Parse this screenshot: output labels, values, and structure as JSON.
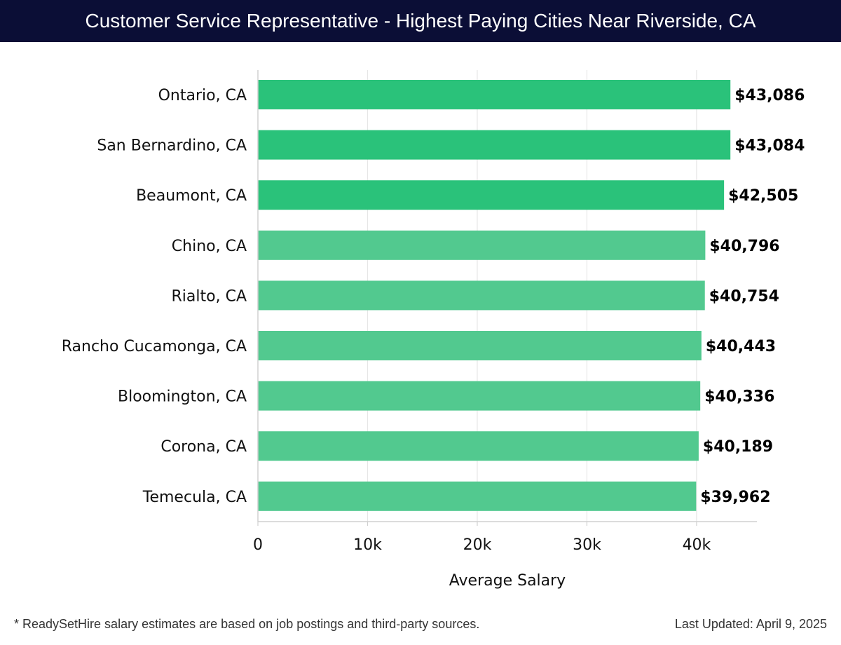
{
  "header": {
    "title": "Customer Service Representative - Highest Paying Cities Near Riverside, CA"
  },
  "chart_data": {
    "type": "bar",
    "orientation": "horizontal",
    "title": "Customer Service Representative - Highest Paying Cities Near Riverside, CA",
    "xlabel": "Average Salary",
    "ylabel": "",
    "xlim": [
      0,
      45500
    ],
    "xticks": [
      0,
      10000,
      20000,
      30000,
      40000
    ],
    "xtick_labels": [
      "0",
      "10k",
      "20k",
      "30k",
      "40k"
    ],
    "grid": true,
    "categories": [
      "Ontario, CA",
      "San Bernardino, CA",
      "Beaumont, CA",
      "Chino, CA",
      "Rialto, CA",
      "Rancho Cucamonga, CA",
      "Bloomington, CA",
      "Corona, CA",
      "Temecula, CA"
    ],
    "values": [
      43086,
      43084,
      42505,
      40796,
      40754,
      40443,
      40336,
      40189,
      39962
    ],
    "value_labels": [
      "$43,086",
      "$43,084",
      "$42,505",
      "$40,796",
      "$40,754",
      "$40,443",
      "$40,336",
      "$40,189",
      "$39,962"
    ],
    "colors": [
      "#2ac27a",
      "#2ac27a",
      "#2ac27a",
      "#52c98f",
      "#52c98f",
      "#52c98f",
      "#52c98f",
      "#52c98f",
      "#52c98f"
    ],
    "grid_color": "#e6e6e6",
    "axis_color": "#d0d0d0"
  },
  "footer": {
    "note": "* ReadySetHire salary estimates are based on job postings and third-party sources.",
    "updated": "Last Updated: April 9, 2025"
  }
}
